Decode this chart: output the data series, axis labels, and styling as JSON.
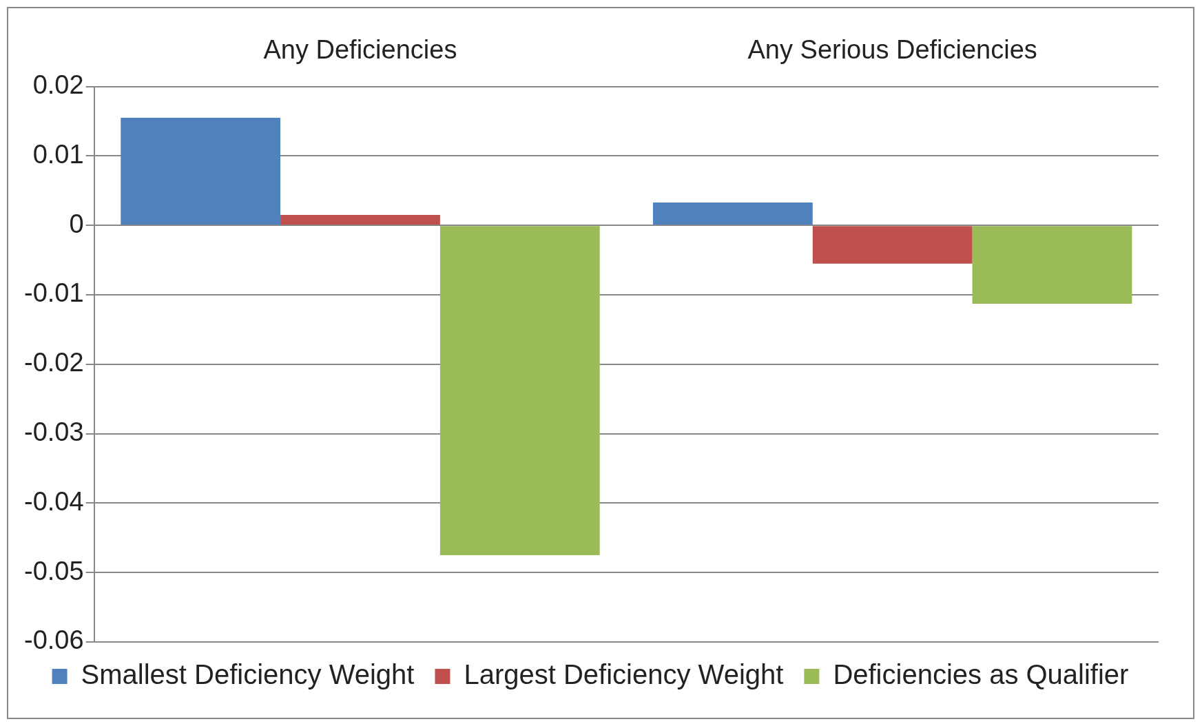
{
  "chart_data": {
    "type": "bar",
    "categories": [
      "Any Deficiencies",
      "Any Serious Deficiencies"
    ],
    "series": [
      {
        "name": "Smallest Deficiency Weight",
        "color": "#4f81bd",
        "values": [
          0.0155,
          0.0033
        ]
      },
      {
        "name": "Largest Deficiency Weight",
        "color": "#c0504d",
        "values": [
          0.0015,
          -0.0055
        ]
      },
      {
        "name": "Deficiencies as Qualifier",
        "color": "#9bbb59",
        "values": [
          -0.0475,
          -0.0113
        ]
      }
    ],
    "ylim": [
      -0.06,
      0.02
    ],
    "yticks": [
      -0.06,
      -0.05,
      -0.04,
      -0.03,
      -0.02,
      -0.01,
      0,
      0.01,
      0.02
    ],
    "grid": "y",
    "legend": "bottom"
  }
}
